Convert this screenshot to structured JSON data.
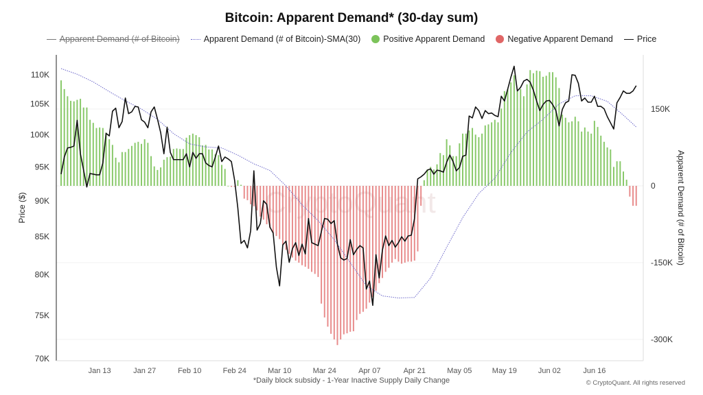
{
  "chart_data": {
    "type": "bar+line",
    "title": "Bitcoin: Apparent Demand* (30-day sum)",
    "footnote": "*Daily block subsidy - 1-Year Inactive Supply Daily Change",
    "copyright": "© CryptoQuant. All rights reserved",
    "watermark": "CryptoQuant",
    "legend": {
      "placement": "top",
      "items": [
        {
          "label": "Apparent Demand (# of Bitcoin)",
          "symbol": "line",
          "color": "#555555",
          "disabled": true
        },
        {
          "label": "Apparent Demand (# of Bitcoin)-SMA(30)",
          "symbol": "dotted-line",
          "color": "#6a66c9"
        },
        {
          "label": "Positive Apparent Demand",
          "symbol": "circle",
          "color": "#7cc35a"
        },
        {
          "label": "Negative Apparent Demand",
          "symbol": "circle",
          "color": "#e06666"
        },
        {
          "label": "Price",
          "symbol": "line",
          "color": "#111111"
        }
      ]
    },
    "x_range": [
      "Jan 01",
      "Jun 28"
    ],
    "frequency": "daily",
    "x_ticks": [
      {
        "label": "Jan 13",
        "day_index": 12
      },
      {
        "label": "Jan 27",
        "day_index": 26
      },
      {
        "label": "Feb 10",
        "day_index": 40
      },
      {
        "label": "Feb 24",
        "day_index": 54
      },
      {
        "label": "Mar 10",
        "day_index": 68
      },
      {
        "label": "Mar 24",
        "day_index": 82
      },
      {
        "label": "Apr 07",
        "day_index": 96
      },
      {
        "label": "Apr 21",
        "day_index": 110
      },
      {
        "label": "May 05",
        "day_index": 124
      },
      {
        "label": "May 19",
        "day_index": 138
      },
      {
        "label": "Jun 02",
        "day_index": 152
      },
      {
        "label": "Jun 16",
        "day_index": 166
      }
    ],
    "y_left": {
      "label": "Price ($)",
      "scale": "log",
      "range": [
        70000,
        112000
      ],
      "ticks": [
        {
          "v": 70000,
          "label": "70K"
        },
        {
          "v": 75000,
          "label": "75K"
        },
        {
          "v": 80000,
          "label": "80K"
        },
        {
          "v": 85000,
          "label": "85K"
        },
        {
          "v": 90000,
          "label": "90K"
        },
        {
          "v": 95000,
          "label": "95K"
        },
        {
          "v": 100000,
          "label": "100K"
        },
        {
          "v": 105000,
          "label": "105K"
        },
        {
          "v": 110000,
          "label": "110K"
        }
      ]
    },
    "y_right": {
      "label": "Apparent Demand (# of Bitcoin)",
      "scale": "linear",
      "range": [
        -340000,
        220000
      ],
      "ticks": [
        {
          "v": 150000,
          "label": "150K"
        },
        {
          "v": 0,
          "label": "0"
        },
        {
          "v": -150000,
          "label": "-150K"
        },
        {
          "v": -300000,
          "label": "-300K"
        }
      ]
    },
    "grid": true,
    "units_note": "demand and sma values in thousands of BTC; price in thousands of USD",
    "demand_k": [
      206,
      189,
      175,
      166,
      165,
      168,
      170,
      153,
      153,
      129,
      123,
      113,
      114,
      113,
      104,
      91,
      80,
      55,
      46,
      66,
      66,
      72,
      78,
      84,
      86,
      82,
      91,
      84,
      58,
      38,
      31,
      36,
      51,
      56,
      57,
      72,
      73,
      72,
      72,
      94,
      99,
      102,
      99,
      95,
      79,
      80,
      71,
      71,
      62,
      60,
      41,
      33,
      0,
      -2,
      -2,
      11,
      2,
      -25,
      -28,
      -36,
      -40,
      -48,
      -60,
      -66,
      -75,
      -82,
      -92,
      -98,
      -104,
      -115,
      -125,
      -133,
      -140,
      -146,
      -150,
      -155,
      -158,
      -162,
      -168,
      -172,
      -178,
      -230,
      -257,
      -275,
      -289,
      -300,
      -311,
      -300,
      -290,
      -288,
      -285,
      -284,
      -262,
      -250,
      -246,
      -240,
      -228,
      -217,
      -205,
      -190,
      -180,
      -168,
      -160,
      -150,
      -143,
      -148,
      -152,
      -150,
      -148,
      -148,
      -146,
      -128,
      -39,
      11,
      32,
      37,
      32,
      42,
      64,
      60,
      91,
      79,
      58,
      58,
      83,
      102,
      102,
      108,
      113,
      100,
      95,
      102,
      118,
      120,
      124,
      129,
      124,
      151,
      185,
      189,
      202,
      216,
      185,
      189,
      175,
      198,
      226,
      220,
      225,
      224,
      213,
      215,
      222,
      222,
      212,
      191,
      139,
      133,
      124,
      126,
      135,
      126,
      106,
      114,
      106,
      102,
      127,
      115,
      98,
      86,
      75,
      71,
      37,
      48,
      48,
      28,
      12,
      -21,
      -39,
      -39
    ],
    "sma30_k": {
      "step_days": 5,
      "values": [
        229,
        218,
        203,
        184,
        166,
        150,
        130,
        102,
        82,
        76,
        74,
        60,
        43,
        30,
        0,
        -37,
        -68,
        -105,
        -150,
        -195,
        -215,
        -219,
        -218,
        -180,
        -120,
        -62,
        -15,
        15,
        65,
        105,
        130,
        160,
        176,
        176,
        165,
        138,
        115
      ]
    },
    "price_k": [
      93.9,
      96.5,
      97.9,
      98.0,
      98.2,
      102.3,
      97.0,
      94.5,
      92.0,
      94.0,
      93.9,
      93.8,
      93.8,
      95.6,
      100.2,
      99.8,
      103.8,
      104.3,
      101.1,
      102.1,
      106.0,
      103.4,
      103.7,
      104.6,
      104.5,
      102.4,
      102.0,
      101.1,
      103.7,
      104.5,
      102.5,
      100.3,
      97.0,
      101.2,
      97.2,
      96.1,
      96.1,
      96.1,
      96.1,
      97.0,
      95.0,
      97.2,
      96.3,
      97.0,
      97.0,
      95.6,
      95.2,
      95.0,
      96.5,
      98.2,
      95.8,
      96.5,
      96.2,
      95.8,
      93.0,
      89.0,
      84.1,
      84.5,
      83.5,
      85.8,
      94.4,
      85.9,
      86.8,
      90.0,
      89.5,
      86.3,
      85.5,
      81.0,
      78.6,
      83.9,
      84.4,
      81.6,
      83.4,
      84.2,
      82.5,
      84.0,
      82.7,
      87.5,
      84.2,
      84.0,
      83.8,
      85.7,
      87.5,
      87.4,
      86.8,
      87.2,
      84.0,
      82.2,
      81.9,
      82.1,
      84.6,
      82.6,
      83.3,
      83.8,
      83.5,
      78.2,
      79.2,
      76.2,
      82.6,
      79.6,
      83.2,
      85.1,
      83.8,
      84.5,
      83.6,
      84.2,
      85.0,
      84.4,
      85.1,
      85.2,
      87.5,
      93.2,
      93.5,
      93.9,
      94.5,
      94.7,
      93.9,
      94.5,
      94.4,
      94.2,
      95.7,
      96.8,
      95.8,
      94.4,
      94.9,
      96.6,
      96.8,
      103.0,
      102.7,
      104.5,
      103.9,
      102.6,
      103.9,
      103.4,
      103.5,
      103.1,
      102.9,
      106.3,
      105.5,
      107.5,
      109.6,
      111.5,
      107.2,
      107.8,
      108.9,
      109.2,
      108.7,
      107.3,
      105.5,
      103.9,
      104.9,
      105.5,
      105.6,
      104.9,
      103.9,
      101.4,
      104.1,
      105.2,
      105.5,
      110.0,
      109.9,
      108.5,
      105.5,
      106.0,
      105.3,
      105.3,
      106.3,
      104.6,
      104.6,
      104.2,
      102.9,
      101.9,
      100.9,
      105.2,
      106.1,
      107.2,
      106.8,
      106.8,
      107.2,
      108.1
    ]
  }
}
